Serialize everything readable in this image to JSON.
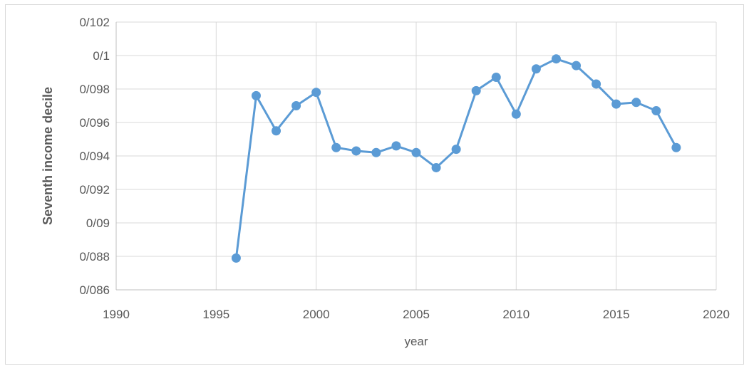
{
  "chart_data": {
    "type": "scatter",
    "title": "",
    "xlabel": "year",
    "ylabel": "Seventh income decile",
    "xlim": [
      1990,
      2020
    ],
    "ylim": [
      0.086,
      0.102
    ],
    "x_ticks": [
      1990,
      1995,
      2000,
      2005,
      2010,
      2015,
      2020
    ],
    "x_tick_labels": [
      "1990",
      "1995",
      "2000",
      "2005",
      "2010",
      "2015",
      "2020"
    ],
    "y_ticks": [
      0.086,
      0.088,
      0.09,
      0.092,
      0.094,
      0.096,
      0.098,
      0.1,
      0.102
    ],
    "y_tick_labels": [
      "0/086",
      "0/088",
      "0/09",
      "0/092",
      "0/094",
      "0/096",
      "0/098",
      "0/1",
      "0/102"
    ],
    "grid": "horizontal",
    "legend": "none",
    "color": "#5b9bd5",
    "series": [
      {
        "x": [
          1996,
          1997,
          1998,
          1999,
          2000,
          2001,
          2002,
          2003,
          2004,
          2005,
          2006,
          2007,
          2008,
          2009,
          2010,
          2011,
          2012,
          2013,
          2014,
          2015,
          2016,
          2017,
          2018
        ],
        "y": [
          0.0879,
          0.0976,
          0.0955,
          0.097,
          0.0978,
          0.0945,
          0.0943,
          0.0942,
          0.0946,
          0.0942,
          0.0933,
          0.0944,
          0.0979,
          0.0987,
          0.0965,
          0.0992,
          0.0998,
          0.0994,
          0.0983,
          0.0971,
          0.0972,
          0.0967,
          0.0945
        ]
      }
    ]
  }
}
